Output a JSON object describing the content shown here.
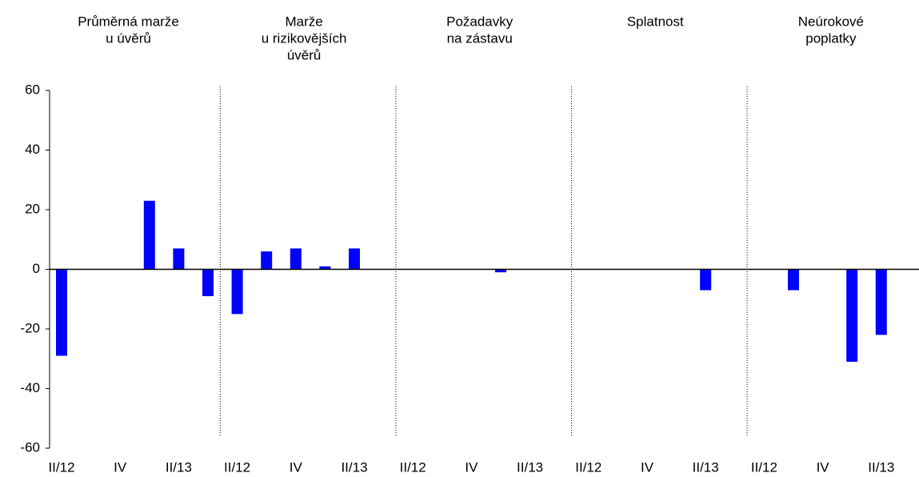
{
  "chart_data": {
    "type": "bar",
    "groups": [
      {
        "name": [
          "Průměrná marže",
          "u úvěrů"
        ]
      },
      {
        "name": [
          "Marže",
          "u rizikovějších",
          "úvěrů"
        ]
      },
      {
        "name": [
          "Požadavky",
          "na zástavu"
        ]
      },
      {
        "name": [
          "Splatnost"
        ]
      },
      {
        "name": [
          "Neúrokové",
          "poplatky"
        ]
      }
    ],
    "categories": [
      "II/12",
      null,
      "IV",
      null,
      "II/13",
      null,
      "II/12",
      null,
      "IV",
      null,
      "II/13",
      null,
      "II/12",
      null,
      "IV",
      null,
      "II/13",
      null,
      "II/12",
      null,
      "IV",
      null,
      "II/13",
      null,
      "II/12",
      null,
      "IV",
      null,
      "II/13",
      null
    ],
    "values": [
      -29,
      0,
      0,
      23,
      7,
      -9,
      -15,
      6,
      7,
      1,
      7,
      0,
      0,
      0,
      0,
      -1,
      0,
      0,
      0,
      0,
      0,
      0,
      -7,
      0,
      0,
      -7,
      0,
      -31,
      -22,
      0
    ],
    "color": "#0000ff",
    "ylim": [
      -60,
      60
    ],
    "yticks": [
      -60,
      -40,
      -20,
      0,
      20,
      40,
      60
    ]
  }
}
